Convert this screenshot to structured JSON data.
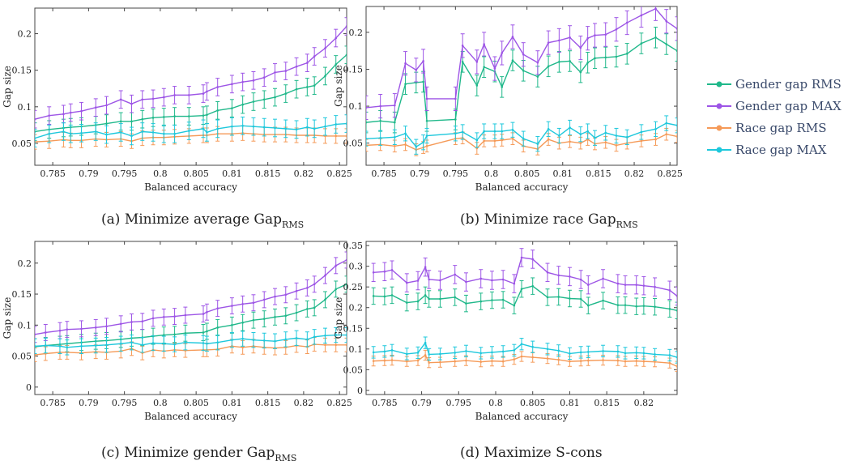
{
  "colors": {
    "Gender gap RMS": "#1fb88a",
    "Gender gap MAX": "#9d55e6",
    "Race gap RMS": "#f59a58",
    "Race gap MAX": "#1ec8dc"
  },
  "legend": {
    "placement": "right",
    "entries": [
      "Gender gap RMS",
      "Gender gap MAX",
      "Race gap RMS",
      "Race gap MAX"
    ]
  },
  "chart_data": [
    {
      "type": "line",
      "caption_label": "(a)",
      "caption_text": "Minimize average Gap",
      "caption_sub": "RMS",
      "xlabel": "Balanced accuracy",
      "ylabel": "Gap size",
      "xlim": [
        0.7825,
        0.826
      ],
      "ylim": [
        0.02,
        0.235
      ],
      "xticks": [
        0.785,
        0.79,
        0.795,
        0.8,
        0.805,
        0.81,
        0.815,
        0.82,
        0.825
      ],
      "yticks": [
        0.05,
        0.1,
        0.15,
        0.2
      ],
      "x": [
        0.7825,
        0.7845,
        0.7865,
        0.7875,
        0.789,
        0.791,
        0.7925,
        0.7945,
        0.796,
        0.7975,
        0.799,
        0.8005,
        0.802,
        0.804,
        0.806,
        0.8065,
        0.808,
        0.81,
        0.8115,
        0.813,
        0.8145,
        0.816,
        0.8175,
        0.819,
        0.8205,
        0.8215,
        0.823,
        0.8245,
        0.826
      ],
      "series": [
        {
          "name": "Gender gap RMS",
          "values": [
            0.066,
            0.069,
            0.071,
            0.072,
            0.073,
            0.075,
            0.077,
            0.08,
            0.08,
            0.083,
            0.085,
            0.086,
            0.087,
            0.087,
            0.088,
            0.089,
            0.095,
            0.098,
            0.103,
            0.107,
            0.11,
            0.113,
            0.118,
            0.124,
            0.127,
            0.129,
            0.142,
            0.158,
            0.171
          ],
          "err": 0.012
        },
        {
          "name": "Gender gap MAX",
          "values": [
            0.083,
            0.088,
            0.09,
            0.092,
            0.094,
            0.099,
            0.102,
            0.11,
            0.104,
            0.11,
            0.111,
            0.113,
            0.116,
            0.116,
            0.118,
            0.121,
            0.127,
            0.131,
            0.134,
            0.136,
            0.14,
            0.147,
            0.149,
            0.155,
            0.16,
            0.169,
            0.18,
            0.194,
            0.21
          ],
          "err": 0.012
        },
        {
          "name": "Race gap RMS",
          "values": [
            0.052,
            0.053,
            0.055,
            0.054,
            0.054,
            0.056,
            0.055,
            0.056,
            0.053,
            0.057,
            0.058,
            0.058,
            0.059,
            0.06,
            0.061,
            0.061,
            0.063,
            0.063,
            0.064,
            0.063,
            0.062,
            0.062,
            0.062,
            0.061,
            0.061,
            0.061,
            0.06,
            0.06,
            0.06
          ],
          "err": 0.01
        },
        {
          "name": "Race gap MAX",
          "values": [
            0.057,
            0.063,
            0.066,
            0.063,
            0.064,
            0.066,
            0.062,
            0.065,
            0.06,
            0.066,
            0.065,
            0.063,
            0.063,
            0.067,
            0.07,
            0.065,
            0.07,
            0.073,
            0.074,
            0.073,
            0.072,
            0.071,
            0.07,
            0.069,
            0.072,
            0.07,
            0.073,
            0.076,
            0.077
          ],
          "err": 0.012
        }
      ]
    },
    {
      "type": "line",
      "caption_label": "(b)",
      "caption_text": "Minimize race Gap",
      "caption_sub": "RMS",
      "xlabel": "Balanced accuracy",
      "ylabel": "Gap size",
      "xlim": [
        0.7825,
        0.826
      ],
      "ylim": [
        0.02,
        0.235
      ],
      "xticks": [
        0.785,
        0.79,
        0.795,
        0.8,
        0.805,
        0.81,
        0.815,
        0.82,
        0.825
      ],
      "yticks": [
        0.05,
        0.1,
        0.15,
        0.2
      ],
      "x": [
        0.7825,
        0.7845,
        0.7865,
        0.788,
        0.7895,
        0.7905,
        0.791,
        0.795,
        0.796,
        0.798,
        0.799,
        0.8005,
        0.8015,
        0.803,
        0.8045,
        0.8065,
        0.808,
        0.8095,
        0.811,
        0.8125,
        0.8135,
        0.8145,
        0.816,
        0.8175,
        0.819,
        0.821,
        0.823,
        0.8245,
        0.826
      ],
      "series": [
        {
          "name": "Gender gap RMS",
          "values": [
            0.078,
            0.08,
            0.078,
            0.13,
            0.132,
            0.133,
            0.08,
            0.082,
            0.16,
            0.128,
            0.153,
            0.147,
            0.126,
            0.162,
            0.148,
            0.14,
            0.154,
            0.16,
            0.161,
            0.146,
            0.159,
            0.165,
            0.166,
            0.167,
            0.171,
            0.185,
            0.193,
            0.184,
            0.175
          ],
          "err": 0.014
        },
        {
          "name": "Gender gap MAX",
          "values": [
            0.098,
            0.1,
            0.101,
            0.158,
            0.149,
            0.161,
            0.11,
            0.11,
            0.182,
            0.16,
            0.184,
            0.151,
            0.172,
            0.194,
            0.17,
            0.159,
            0.186,
            0.189,
            0.193,
            0.179,
            0.192,
            0.196,
            0.197,
            0.204,
            0.213,
            0.223,
            0.232,
            0.215,
            0.205
          ],
          "err": 0.016
        },
        {
          "name": "Race gap RMS",
          "values": [
            0.047,
            0.048,
            0.046,
            0.048,
            0.041,
            0.044,
            0.046,
            0.056,
            0.057,
            0.043,
            0.053,
            0.053,
            0.054,
            0.056,
            0.046,
            0.042,
            0.055,
            0.05,
            0.052,
            0.05,
            0.055,
            0.049,
            0.051,
            0.047,
            0.05,
            0.053,
            0.055,
            0.062,
            0.059
          ],
          "err": 0.008
        },
        {
          "name": "Race gap MAX",
          "values": [
            0.056,
            0.057,
            0.058,
            0.063,
            0.045,
            0.051,
            0.06,
            0.063,
            0.065,
            0.054,
            0.066,
            0.066,
            0.066,
            0.068,
            0.056,
            0.049,
            0.069,
            0.06,
            0.071,
            0.062,
            0.066,
            0.057,
            0.064,
            0.06,
            0.058,
            0.065,
            0.069,
            0.077,
            0.074
          ],
          "err": 0.01
        }
      ]
    },
    {
      "type": "line",
      "caption_label": "(c)",
      "caption_text": "Minimize gender Gap",
      "caption_sub": "RMS",
      "xlabel": "Balanced accuracy",
      "ylabel": "Gap size",
      "xlim": [
        0.7825,
        0.826
      ],
      "ylim": [
        -0.012,
        0.235
      ],
      "xticks": [
        0.785,
        0.79,
        0.795,
        0.8,
        0.805,
        0.81,
        0.815,
        0.82,
        0.825
      ],
      "yticks": [
        0,
        0.05,
        0.1,
        0.15,
        0.2
      ],
      "x": [
        0.7825,
        0.784,
        0.786,
        0.787,
        0.789,
        0.791,
        0.7925,
        0.7945,
        0.796,
        0.7975,
        0.799,
        0.8005,
        0.802,
        0.8035,
        0.806,
        0.8065,
        0.808,
        0.81,
        0.8115,
        0.813,
        0.8145,
        0.816,
        0.8175,
        0.819,
        0.8205,
        0.8215,
        0.823,
        0.8245,
        0.826
      ],
      "series": [
        {
          "name": "Gender gap RMS",
          "values": [
            0.065,
            0.067,
            0.069,
            0.07,
            0.072,
            0.074,
            0.075,
            0.077,
            0.079,
            0.08,
            0.082,
            0.084,
            0.085,
            0.087,
            0.088,
            0.09,
            0.096,
            0.1,
            0.104,
            0.108,
            0.11,
            0.113,
            0.115,
            0.12,
            0.126,
            0.128,
            0.141,
            0.158,
            0.166
          ],
          "err": 0.013
        },
        {
          "name": "Gender gap MAX",
          "values": [
            0.085,
            0.088,
            0.091,
            0.093,
            0.094,
            0.096,
            0.098,
            0.102,
            0.105,
            0.106,
            0.111,
            0.113,
            0.114,
            0.116,
            0.118,
            0.121,
            0.127,
            0.131,
            0.134,
            0.136,
            0.141,
            0.146,
            0.149,
            0.155,
            0.16,
            0.166,
            0.18,
            0.196,
            0.205
          ],
          "err": 0.013
        },
        {
          "name": "Race gap RMS",
          "values": [
            0.052,
            0.054,
            0.056,
            0.056,
            0.055,
            0.057,
            0.056,
            0.058,
            0.062,
            0.055,
            0.06,
            0.058,
            0.06,
            0.059,
            0.06,
            0.06,
            0.061,
            0.066,
            0.064,
            0.066,
            0.064,
            0.063,
            0.064,
            0.067,
            0.065,
            0.069,
            0.068,
            0.068,
            0.068
          ],
          "err": 0.011
        },
        {
          "name": "Race gap MAX",
          "values": [
            0.066,
            0.067,
            0.066,
            0.064,
            0.066,
            0.067,
            0.068,
            0.07,
            0.072,
            0.068,
            0.071,
            0.07,
            0.069,
            0.072,
            0.071,
            0.07,
            0.072,
            0.076,
            0.078,
            0.076,
            0.075,
            0.074,
            0.077,
            0.079,
            0.077,
            0.081,
            0.083,
            0.084,
            0.084
          ],
          "err": 0.012
        }
      ]
    },
    {
      "type": "line",
      "caption_label": "(d)",
      "caption_text": "Maximize S-cons",
      "caption_sub": "",
      "xlabel": "Balanced accuracy",
      "ylabel": "Gap size",
      "xlim": [
        0.7825,
        0.8245
      ],
      "ylim": [
        -0.01,
        0.36
      ],
      "xticks": [
        0.785,
        0.79,
        0.795,
        0.8,
        0.805,
        0.81,
        0.815,
        0.82
      ],
      "yticks": [
        0,
        0.05,
        0.1,
        0.15,
        0.2,
        0.25,
        0.3,
        0.35
      ],
      "x": [
        0.7835,
        0.785,
        0.786,
        0.788,
        0.7895,
        0.7905,
        0.791,
        0.7925,
        0.7945,
        0.796,
        0.798,
        0.7995,
        0.801,
        0.8025,
        0.8035,
        0.805,
        0.807,
        0.8085,
        0.81,
        0.8115,
        0.8125,
        0.8145,
        0.8165,
        0.8175,
        0.819,
        0.82,
        0.8215,
        0.8235,
        0.8245
      ],
      "series": [
        {
          "name": "Gender gap RMS",
          "values": [
            0.228,
            0.227,
            0.23,
            0.212,
            0.215,
            0.23,
            0.221,
            0.221,
            0.225,
            0.21,
            0.215,
            0.218,
            0.219,
            0.205,
            0.245,
            0.252,
            0.225,
            0.226,
            0.222,
            0.221,
            0.205,
            0.217,
            0.206,
            0.206,
            0.203,
            0.204,
            0.202,
            0.197,
            0.193
          ],
          "err": 0.02
        },
        {
          "name": "Gender gap MAX",
          "values": [
            0.285,
            0.287,
            0.291,
            0.26,
            0.265,
            0.298,
            0.268,
            0.266,
            0.28,
            0.262,
            0.27,
            0.266,
            0.268,
            0.258,
            0.321,
            0.317,
            0.285,
            0.278,
            0.275,
            0.268,
            0.255,
            0.27,
            0.258,
            0.255,
            0.255,
            0.253,
            0.25,
            0.242,
            0.228
          ],
          "err": 0.022
        },
        {
          "name": "Race gap RMS",
          "values": [
            0.071,
            0.072,
            0.073,
            0.07,
            0.072,
            0.085,
            0.067,
            0.068,
            0.07,
            0.072,
            0.069,
            0.071,
            0.07,
            0.075,
            0.082,
            0.08,
            0.077,
            0.074,
            0.07,
            0.071,
            0.072,
            0.073,
            0.072,
            0.07,
            0.071,
            0.07,
            0.069,
            0.066,
            0.058
          ],
          "err": 0.012
        },
        {
          "name": "Race gap MAX",
          "values": [
            0.092,
            0.094,
            0.097,
            0.088,
            0.091,
            0.115,
            0.087,
            0.088,
            0.091,
            0.095,
            0.09,
            0.092,
            0.094,
            0.097,
            0.112,
            0.105,
            0.1,
            0.096,
            0.089,
            0.092,
            0.093,
            0.095,
            0.094,
            0.09,
            0.091,
            0.09,
            0.087,
            0.085,
            0.08
          ],
          "err": 0.014
        }
      ]
    }
  ]
}
